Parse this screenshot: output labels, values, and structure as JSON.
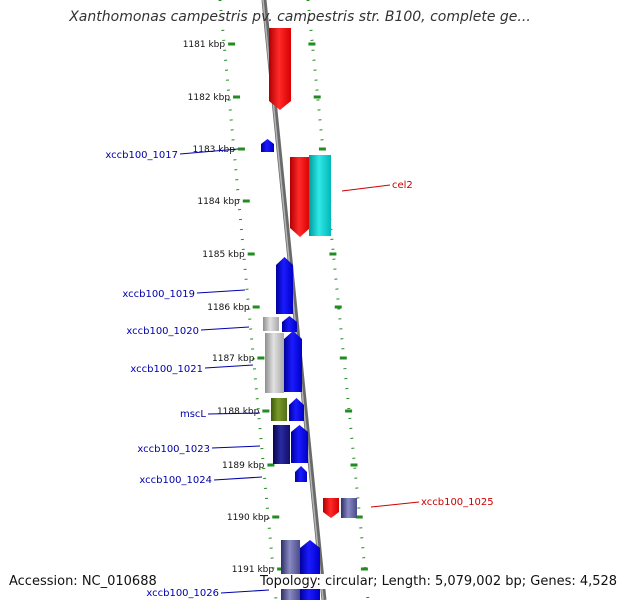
{
  "title": "Xanthomonas campestris pv. campestris str. B100, complete ge...",
  "accession": "Accession: NC_010688",
  "summary": "Topology: circular; Length: 5,079,002 bp; Genes: 4,528",
  "colors": {
    "tick": "#228b22",
    "backbone": "#8a8a8a",
    "label_blue": "#0000aa",
    "label_red": "#cc0000"
  },
  "ticks": [
    "1181 kbp",
    "1182 kbp",
    "1183 kbp",
    "1184 kbp",
    "1185 kbp",
    "1186 kbp",
    "1187 kbp",
    "1188 kbp",
    "1189 kbp",
    "1190 kbp",
    "1191 kbp"
  ],
  "gene_labels": [
    {
      "text": "xccb100_1017",
      "color": "blue"
    },
    {
      "text": "cel2",
      "color": "red"
    },
    {
      "text": "xccb100_1019",
      "color": "blue"
    },
    {
      "text": "xccb100_1020",
      "color": "blue"
    },
    {
      "text": "xccb100_1021",
      "color": "blue"
    },
    {
      "text": "mscL",
      "color": "blue"
    },
    {
      "text": "xccb100_1023",
      "color": "blue"
    },
    {
      "text": "xccb100_1024",
      "color": "blue"
    },
    {
      "text": "xccb100_1025",
      "color": "red"
    },
    {
      "text": "xccb100_1026",
      "color": "blue"
    }
  ],
  "features": [
    {
      "name": "red-gene-top",
      "color": "red"
    },
    {
      "name": "xccb100_1017",
      "color": "blue"
    },
    {
      "name": "cel2-red",
      "color": "red"
    },
    {
      "name": "cel2-cyan",
      "color": "cyan"
    },
    {
      "name": "xccb100_1019",
      "color": "blue"
    },
    {
      "name": "xccb100_1020-grey",
      "color": "grey"
    },
    {
      "name": "xccb100_1020",
      "color": "blue"
    },
    {
      "name": "xccb100_1021-grey",
      "color": "grey"
    },
    {
      "name": "xccb100_1021",
      "color": "blue"
    },
    {
      "name": "mscL-olive",
      "color": "olive"
    },
    {
      "name": "mscL",
      "color": "blue"
    },
    {
      "name": "xccb100_1023-navy",
      "color": "navy"
    },
    {
      "name": "xccb100_1023",
      "color": "blue"
    },
    {
      "name": "xccb100_1024",
      "color": "blue"
    },
    {
      "name": "xccb100_1025-red",
      "color": "red"
    },
    {
      "name": "xccb100_1025-slate",
      "color": "slate"
    },
    {
      "name": "xccb100_1026-slate",
      "color": "slate"
    },
    {
      "name": "xccb100_1026",
      "color": "blue"
    }
  ]
}
